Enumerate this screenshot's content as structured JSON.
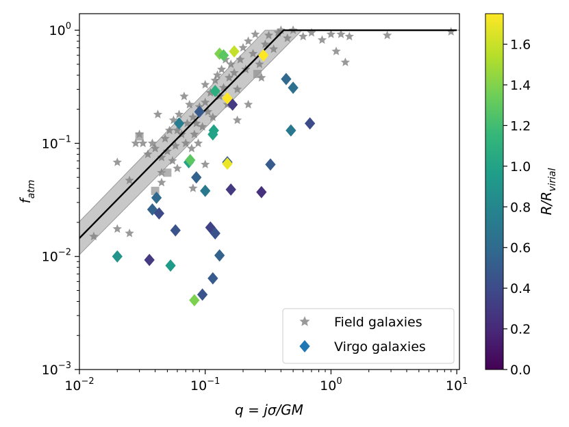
{
  "chart_data": {
    "type": "scatter",
    "xscale": "log",
    "yscale": "log",
    "xlim": [
      0.01,
      10.5
    ],
    "ylim": [
      0.001,
      1.4
    ],
    "xlabel": "q = jσ/GM",
    "ylabel": "f_atm",
    "x_ticks": [
      {
        "value": 0.01,
        "base": "10",
        "exp": "−2"
      },
      {
        "value": 0.1,
        "base": "10",
        "exp": "−1"
      },
      {
        "value": 1,
        "base": "10",
        "exp": "0"
      },
      {
        "value": 10,
        "base": "10",
        "exp": "1"
      }
    ],
    "y_ticks": [
      {
        "value": 0.001,
        "base": "10",
        "exp": "−3"
      },
      {
        "value": 0.01,
        "base": "10",
        "exp": "−2"
      },
      {
        "value": 0.1,
        "base": "10",
        "exp": "−1"
      },
      {
        "value": 1,
        "base": "10",
        "exp": "0"
      }
    ],
    "colorbar": {
      "label_main": "R/R",
      "label_sub": "virial",
      "range": [
        0,
        1.75
      ],
      "ticks": [
        "0.0",
        "0.2",
        "0.4",
        "0.6",
        "0.8",
        "1.0",
        "1.2",
        "1.4",
        "1.6"
      ],
      "colormap": [
        "#440154",
        "#482878",
        "#3e4989",
        "#31688e",
        "#26828e",
        "#1f9e89",
        "#35b779",
        "#6ece58",
        "#b5de2b",
        "#fde725"
      ]
    },
    "legend": {
      "position": "lower-right",
      "entries": [
        {
          "label": "Field galaxies",
          "marker": "star",
          "color": "#808080"
        },
        {
          "label": "Virgo galaxies",
          "marker": "diamond",
          "color": "#1f77b4"
        }
      ]
    },
    "model_line": {
      "color": "#000000",
      "points": [
        [
          0.01,
          0.0145
        ],
        [
          0.42,
          1.0
        ],
        [
          10.0,
          1.0
        ]
      ],
      "band_factor": 1.4,
      "band_color": "#b0b0b0"
    },
    "field_galaxies": [
      [
        0.013,
        0.015
      ],
      [
        0.02,
        0.0175
      ],
      [
        0.02,
        0.068
      ],
      [
        0.025,
        0.016
      ],
      [
        0.025,
        0.047
      ],
      [
        0.028,
        0.1
      ],
      [
        0.03,
        0.12
      ],
      [
        0.032,
        0.1
      ],
      [
        0.035,
        0.08
      ],
      [
        0.038,
        0.1
      ],
      [
        0.04,
        0.09
      ],
      [
        0.042,
        0.18
      ],
      [
        0.045,
        0.055
      ],
      [
        0.045,
        0.075
      ],
      [
        0.048,
        0.11
      ],
      [
        0.05,
        0.085
      ],
      [
        0.052,
        0.13
      ],
      [
        0.055,
        0.07
      ],
      [
        0.056,
        0.16
      ],
      [
        0.058,
        0.095
      ],
      [
        0.06,
        0.13
      ],
      [
        0.062,
        0.18
      ],
      [
        0.065,
        0.12
      ],
      [
        0.068,
        0.26
      ],
      [
        0.07,
        0.1
      ],
      [
        0.072,
        0.15
      ],
      [
        0.075,
        0.22
      ],
      [
        0.078,
        0.09
      ],
      [
        0.08,
        0.17
      ],
      [
        0.082,
        0.12
      ],
      [
        0.085,
        0.15
      ],
      [
        0.088,
        0.1
      ],
      [
        0.09,
        0.21
      ],
      [
        0.095,
        0.14
      ],
      [
        0.1,
        0.23
      ],
      [
        0.1,
        0.33
      ],
      [
        0.105,
        0.19
      ],
      [
        0.11,
        0.28
      ],
      [
        0.115,
        0.17
      ],
      [
        0.12,
        0.36
      ],
      [
        0.125,
        0.4
      ],
      [
        0.13,
        0.26
      ],
      [
        0.135,
        0.45
      ],
      [
        0.14,
        0.31
      ],
      [
        0.145,
        0.55
      ],
      [
        0.15,
        0.22
      ],
      [
        0.155,
        0.38
      ],
      [
        0.16,
        0.5
      ],
      [
        0.17,
        0.42
      ],
      [
        0.18,
        0.3
      ],
      [
        0.19,
        0.55
      ],
      [
        0.2,
        0.7
      ],
      [
        0.21,
        0.45
      ],
      [
        0.22,
        0.8
      ],
      [
        0.24,
        0.62
      ],
      [
        0.25,
        0.92
      ],
      [
        0.27,
        0.5
      ],
      [
        0.28,
        0.38
      ],
      [
        0.3,
        0.75
      ],
      [
        0.32,
        0.9
      ],
      [
        0.35,
        0.68
      ],
      [
        0.38,
        0.95
      ],
      [
        0.4,
        1.0
      ],
      [
        0.45,
        0.85
      ],
      [
        0.5,
        1.0
      ],
      [
        0.6,
        0.88
      ],
      [
        0.7,
        0.95
      ],
      [
        0.85,
        0.82
      ],
      [
        1.0,
        0.92
      ],
      [
        1.1,
        0.65
      ],
      [
        1.2,
        0.92
      ],
      [
        1.3,
        0.52
      ],
      [
        1.4,
        0.88
      ],
      [
        2.8,
        0.9
      ],
      [
        9.0,
        0.97
      ],
      [
        0.045,
        0.045
      ],
      [
        0.06,
        0.06
      ],
      [
        0.1,
        0.065
      ],
      [
        0.08,
        0.04
      ],
      [
        0.18,
        0.16
      ],
      [
        0.22,
        0.22
      ]
    ],
    "field_squares": [
      [
        0.03,
        0.115
      ],
      [
        0.05,
        0.055
      ],
      [
        0.04,
        0.038
      ],
      [
        0.26,
        0.41
      ]
    ],
    "virgo_galaxies": [
      [
        0.02,
        0.01,
        0.9
      ],
      [
        0.036,
        0.0093,
        0.3
      ],
      [
        0.038,
        0.026,
        0.55
      ],
      [
        0.041,
        0.033,
        0.6
      ],
      [
        0.043,
        0.024,
        0.4
      ],
      [
        0.053,
        0.0083,
        0.95
      ],
      [
        0.058,
        0.017,
        0.45
      ],
      [
        0.062,
        0.15,
        0.75
      ],
      [
        0.074,
        0.068,
        1.0
      ],
      [
        0.076,
        0.071,
        1.3
      ],
      [
        0.082,
        0.0041,
        1.4
      ],
      [
        0.085,
        0.05,
        0.55
      ],
      [
        0.09,
        0.19,
        0.5
      ],
      [
        0.095,
        0.0046,
        0.45
      ],
      [
        0.1,
        0.038,
        0.7
      ],
      [
        0.11,
        0.018,
        0.35
      ],
      [
        0.115,
        0.0064,
        0.5
      ],
      [
        0.115,
        0.12,
        1.0
      ],
      [
        0.12,
        0.016,
        0.45
      ],
      [
        0.12,
        0.29,
        1.1
      ],
      [
        0.13,
        0.0102,
        0.55
      ],
      [
        0.13,
        0.62,
        1.4
      ],
      [
        0.14,
        0.6,
        1.3
      ],
      [
        0.15,
        0.068,
        0.5
      ],
      [
        0.15,
        0.066,
        1.7
      ],
      [
        0.16,
        0.039,
        0.3
      ],
      [
        0.165,
        0.22,
        0.3
      ],
      [
        0.17,
        0.65,
        1.6
      ],
      [
        0.15,
        0.25,
        1.75
      ],
      [
        0.28,
        0.037,
        0.25
      ],
      [
        0.29,
        0.6,
        1.75
      ],
      [
        0.33,
        0.065,
        0.5
      ],
      [
        0.44,
        0.37,
        0.6
      ],
      [
        0.48,
        0.13,
        0.7
      ],
      [
        0.5,
        0.31,
        0.65
      ],
      [
        0.68,
        0.15,
        0.4
      ],
      [
        0.117,
        0.13,
        1.0
      ]
    ]
  }
}
